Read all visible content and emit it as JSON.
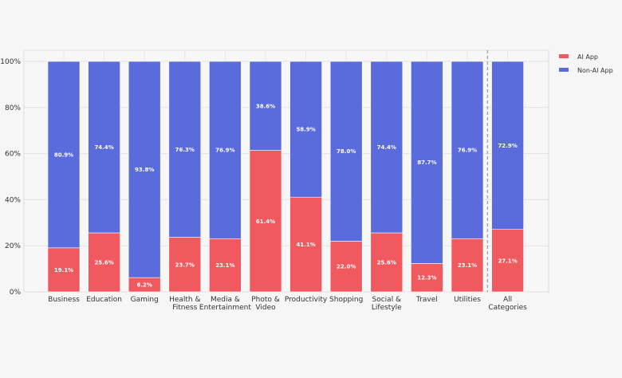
{
  "chart_data": {
    "type": "bar",
    "stacked": true,
    "normalized": true,
    "categories": [
      [
        "Business"
      ],
      [
        "Education"
      ],
      [
        "Gaming"
      ],
      [
        "Health &",
        "Fitness"
      ],
      [
        "Media &",
        "Entertainment"
      ],
      [
        "Photo &",
        "Video"
      ],
      [
        "Productivity"
      ],
      [
        "Shopping"
      ],
      [
        "Social &",
        "Lifestyle"
      ],
      [
        "Travel"
      ],
      [
        "Utilities"
      ],
      [
        "All",
        "Categories"
      ]
    ],
    "series": [
      {
        "name": "AI App",
        "color": "#f05a5f",
        "values": [
          19.1,
          25.6,
          6.2,
          23.7,
          23.1,
          61.4,
          41.1,
          22.0,
          25.6,
          12.3,
          23.1,
          27.1
        ],
        "labels": [
          "19.1%",
          "25.6%",
          "6.2%",
          "23.7%",
          "23.1%",
          "61.4%",
          "41.1%",
          "22.0%",
          "25.6%",
          "12.3%",
          "23.1%",
          "27.1%"
        ]
      },
      {
        "name": "Non-AI App",
        "color": "#5a6bdc",
        "values": [
          80.9,
          74.4,
          93.8,
          76.3,
          76.9,
          38.6,
          58.9,
          78.0,
          74.4,
          87.7,
          76.9,
          72.9
        ],
        "labels": [
          "80.9%",
          "74.4%",
          "93.8%",
          "76.3%",
          "76.9%",
          "38.6%",
          "58.9%",
          "78.0%",
          "74.4%",
          "87.7%",
          "76.9%",
          "72.9%"
        ]
      }
    ],
    "y_ticks": [
      0,
      20,
      40,
      60,
      80,
      100
    ],
    "y_tick_labels": [
      "0%",
      "20%",
      "40%",
      "60%",
      "80%",
      "100%"
    ],
    "ylim": [
      0,
      100
    ],
    "grid": true,
    "legend_position": "top-right",
    "separator_before_last_category": true,
    "title": "",
    "xlabel": "",
    "ylabel": ""
  }
}
